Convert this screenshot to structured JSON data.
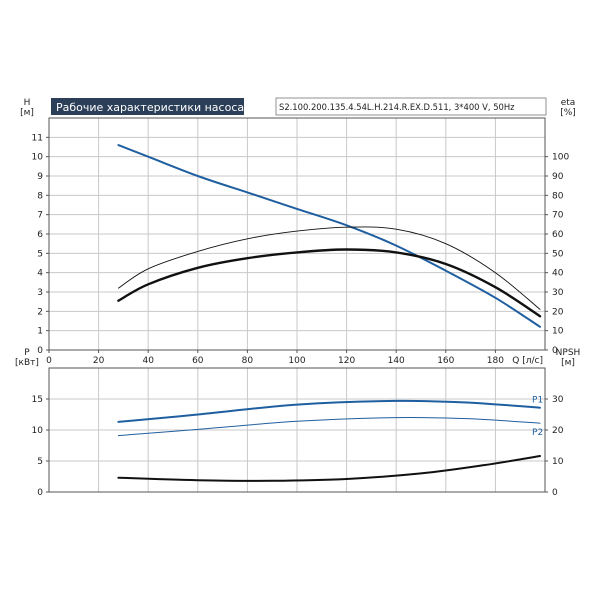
{
  "title": "Рабочие характеристики насоса",
  "model": "S2.100.200.135.4.54L.H.214.R.EX.D.511, 3*400 V, 50Hz",
  "chart_data": [
    {
      "type": "line",
      "name": "performance",
      "xlabel": "Q [л/с]",
      "ylabel_left": [
        "H",
        "[м]"
      ],
      "ylabel_right": [
        "eta",
        "[%]"
      ],
      "xlim": [
        0,
        200
      ],
      "ylim_left": [
        0,
        12
      ],
      "ylim_right": [
        0,
        120
      ],
      "xticks": [
        0,
        20,
        40,
        60,
        80,
        100,
        120,
        140,
        160,
        180
      ],
      "yticks_left": [
        0,
        1,
        2,
        3,
        4,
        5,
        6,
        7,
        8,
        9,
        10,
        11
      ],
      "yticks_right": [
        0,
        10,
        20,
        30,
        40,
        50,
        60,
        70,
        80,
        90,
        100
      ],
      "grid": true,
      "series": [
        {
          "axis": "left",
          "color": "#1f5fa0",
          "width": 2,
          "x": [
            28,
            40,
            60,
            80,
            100,
            120,
            140,
            160,
            180,
            198
          ],
          "y": [
            10.6,
            10.0,
            9.0,
            8.15,
            7.3,
            6.45,
            5.4,
            4.1,
            2.7,
            1.2
          ]
        },
        {
          "axis": "right",
          "color": "#111111",
          "width": 0.9,
          "x": [
            28,
            40,
            60,
            80,
            100,
            120,
            140,
            160,
            180,
            198
          ],
          "y": [
            32,
            42,
            51,
            57.5,
            61.5,
            63.5,
            62.5,
            55,
            40,
            21
          ]
        },
        {
          "axis": "right",
          "color": "#111111",
          "width": 2.4,
          "x": [
            28,
            40,
            60,
            80,
            100,
            120,
            140,
            160,
            180,
            198
          ],
          "y": [
            25.5,
            34,
            42.5,
            47.5,
            50.5,
            52,
            50.5,
            44.5,
            32.5,
            17.5
          ]
        }
      ]
    },
    {
      "type": "line",
      "name": "power-npsh",
      "ylabel_left": [
        "P",
        "[кВт]"
      ],
      "ylabel_right": [
        "NPSH",
        "[м]"
      ],
      "xlim": [
        0,
        200
      ],
      "ylim_left": [
        0,
        20
      ],
      "ylim_right": [
        0,
        40
      ],
      "yticks_left": [
        0,
        5,
        10,
        15
      ],
      "yticks_right": [
        0,
        10,
        20,
        30
      ],
      "grid": true,
      "series": [
        {
          "name": "P1",
          "axis": "left",
          "color": "#1f5fa0",
          "width": 2,
          "x": [
            28,
            60,
            100,
            140,
            170,
            198
          ],
          "y": [
            11.3,
            12.5,
            14.1,
            14.7,
            14.4,
            13.6
          ]
        },
        {
          "name": "P2",
          "axis": "left",
          "color": "#1f5fa0",
          "width": 1,
          "x": [
            28,
            60,
            100,
            140,
            170,
            198
          ],
          "y": [
            9.1,
            10.1,
            11.4,
            12.0,
            11.8,
            11.1
          ]
        },
        {
          "axis": "right",
          "color": "#111111",
          "width": 2,
          "x": [
            28,
            60,
            90,
            120,
            150,
            175,
            198
          ],
          "y": [
            4.6,
            3.8,
            3.6,
            4.2,
            6.0,
            8.6,
            11.6
          ]
        }
      ]
    }
  ]
}
